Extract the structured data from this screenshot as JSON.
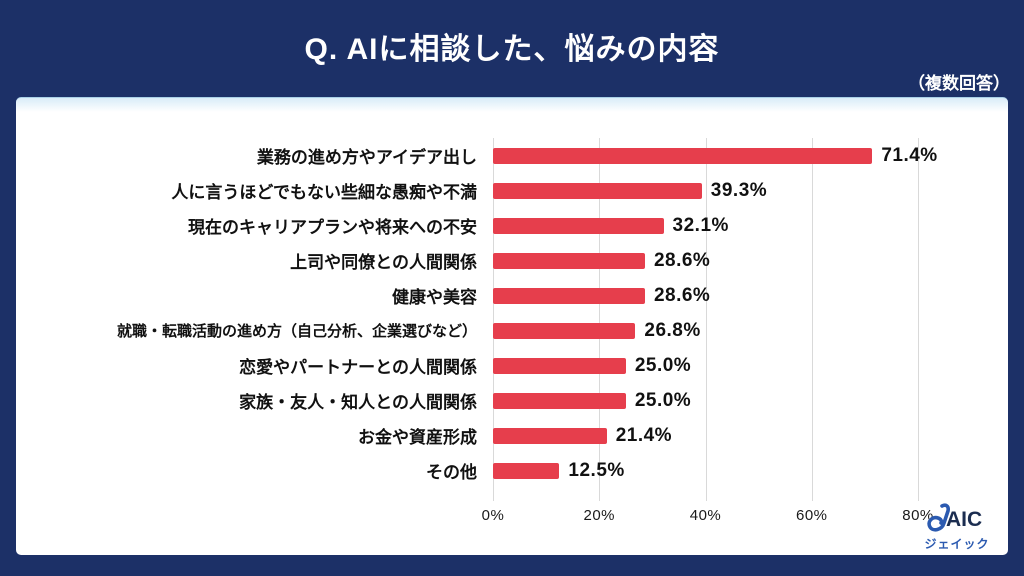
{
  "header": {
    "title": "Q. AIに相談した、悩みの内容",
    "note": "（複数回答）"
  },
  "chart_data": {
    "type": "bar",
    "orientation": "horizontal",
    "title": "Q. AIに相談した、悩みの内容",
    "subtitle": "（複数回答）",
    "categories": [
      "業務の進め方やアイデア出し",
      "人に言うほどでもない些細な愚痴や不満",
      "現在のキャリアプランや将来への不安",
      "上司や同僚との人間関係",
      "健康や美容",
      "就職・転職活動の進め方（自己分析、企業選びなど）",
      "恋愛やパートナーとの人間関係",
      "家族・友人・知人との人間関係",
      "お金や資産形成",
      "その他"
    ],
    "values": [
      71.4,
      39.3,
      32.1,
      28.6,
      28.6,
      26.8,
      25.0,
      25.0,
      21.4,
      12.5
    ],
    "value_labels": [
      "71.4%",
      "39.3%",
      "32.1%",
      "28.6%",
      "28.6%",
      "26.8%",
      "25.0%",
      "25.0%",
      "21.4%",
      "12.5%"
    ],
    "x_ticks": [
      "0%",
      "20%",
      "40%",
      "60%",
      "80%"
    ],
    "xlim": [
      0,
      80
    ],
    "grid": true,
    "legend": false,
    "bar_color": "#e63e4c"
  },
  "logo": {
    "name": "JAIC",
    "subtitle": "ジェイック",
    "blue": "#2b5ab0",
    "navy": "#1b2d50"
  },
  "colors": {
    "background_navy": "#1c3067",
    "card_white": "#ffffff",
    "gridline_gray": "#d9d9d9",
    "text_black": "#111111"
  }
}
